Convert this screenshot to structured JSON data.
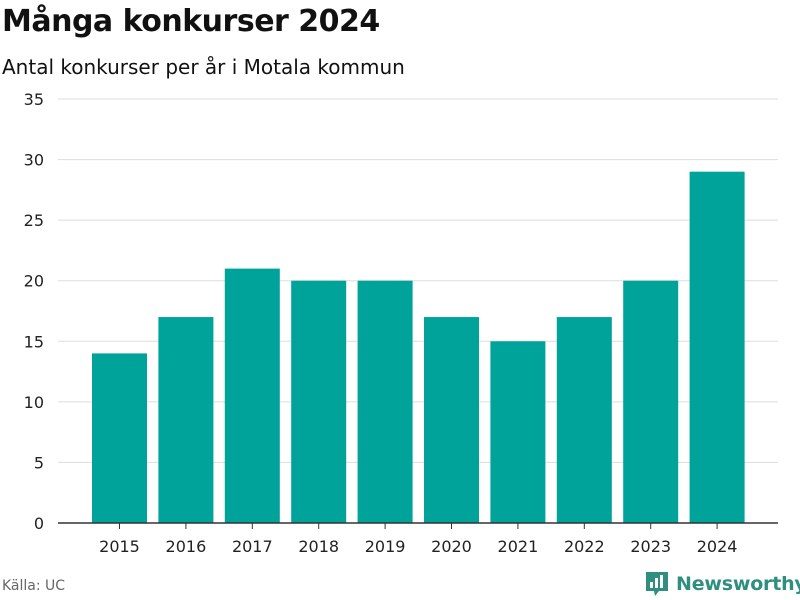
{
  "title": "Många konkurser 2024",
  "subtitle": "Antal konkurser per år i Motala kommun",
  "source": "Källa: UC",
  "brand": {
    "name": "Newsworthy",
    "icon": "newsworthy-logo-icon",
    "color": "#2f8f7f"
  },
  "colors": {
    "bar": "#00a39a",
    "grid": "#dddddd",
    "axis": "#333333"
  },
  "chart_data": {
    "type": "bar",
    "categories": [
      "2015",
      "2016",
      "2017",
      "2018",
      "2019",
      "2020",
      "2021",
      "2022",
      "2023",
      "2024"
    ],
    "values": [
      14,
      17,
      21,
      20,
      20,
      17,
      15,
      17,
      20,
      29
    ],
    "ylim": [
      0,
      35
    ],
    "yticks": [
      0,
      5,
      10,
      15,
      20,
      25,
      30,
      35
    ],
    "grid": true,
    "legend": "none"
  }
}
